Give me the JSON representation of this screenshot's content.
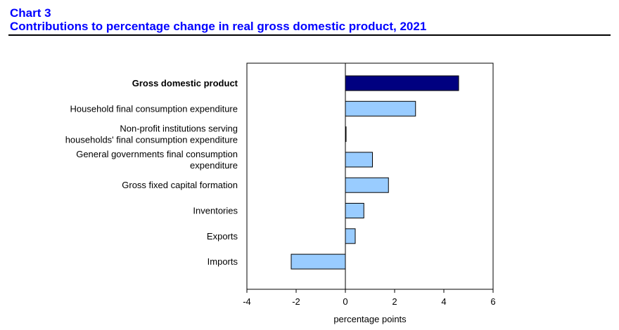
{
  "header": {
    "chart_number": "Chart 3",
    "title": "Contributions to percentage change in real gross domestic product, 2021"
  },
  "colors": {
    "header_text": "#0000ff",
    "total_bar": "#000080",
    "component_bar": "#99ccff",
    "outline": "#000000"
  },
  "chart_data": {
    "type": "bar",
    "orientation": "horizontal",
    "title": "Contributions to percentage change in real gross domestic product, 2021",
    "xlabel": "percentage points",
    "ylabel": "",
    "xlim": [
      -4,
      6
    ],
    "xticks": [
      "-4",
      "-2",
      "0",
      "2",
      "4",
      "6"
    ],
    "grid": false,
    "categories": [
      [
        "Gross domestic product"
      ],
      [
        "Household final consumption expenditure"
      ],
      [
        "Non-profit institutions serving",
        "households' final consumption expenditure"
      ],
      [
        "General governments final consumption",
        "expenditure"
      ],
      [
        "Gross fixed capital formation"
      ],
      [
        "Inventories"
      ],
      [
        "Exports"
      ],
      [
        "Imports"
      ]
    ],
    "values": [
      4.6,
      2.85,
      0.02,
      1.1,
      1.75,
      0.75,
      0.4,
      -2.2
    ],
    "highlight_first": true
  }
}
